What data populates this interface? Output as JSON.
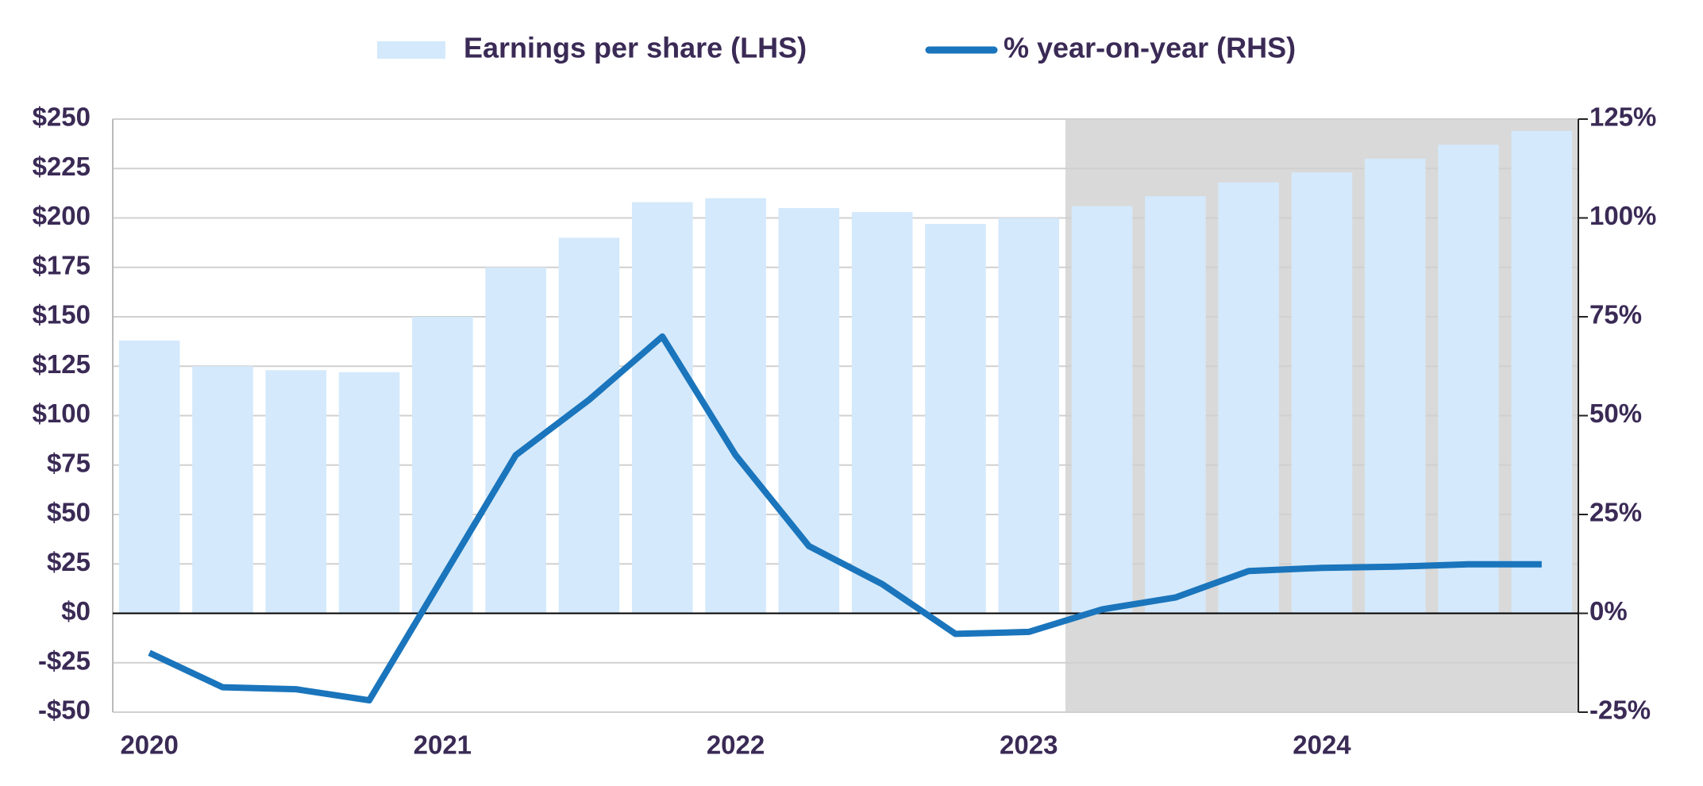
{
  "chart_data": {
    "type": "bar_line",
    "categories": [
      "2020",
      null,
      null,
      null,
      "2021",
      null,
      null,
      null,
      "2022",
      null,
      null,
      null,
      "2023",
      null,
      null,
      null,
      "2024",
      null,
      null,
      null
    ],
    "series": [
      {
        "name": "Earnings per share (LHS)",
        "type": "bar",
        "color": "#d4e9fb",
        "values": [
          138,
          125,
          123,
          122,
          150,
          175,
          190,
          208,
          210,
          205,
          203,
          197,
          200,
          206,
          211,
          218,
          223,
          230,
          237,
          244
        ]
      },
      {
        "name": "% year-on-year (RHS)",
        "type": "line",
        "axis": "y2",
        "color": "#1a75bc",
        "values": [
          -10,
          -18.7,
          -19.2,
          -22,
          9,
          40,
          54,
          70,
          40,
          17,
          7.4,
          -5.2,
          -4.7,
          1,
          4,
          10.7,
          11.5,
          11.8,
          12.4,
          12.4
        ]
      }
    ],
    "ylim": [
      -50,
      250
    ],
    "yticks": [
      {
        "value": -50,
        "label": "-$50"
      },
      {
        "value": -25,
        "label": "-$25"
      },
      {
        "value": 0,
        "label": "$0"
      },
      {
        "value": 25,
        "label": "$25"
      },
      {
        "value": 50,
        "label": "$50"
      },
      {
        "value": 75,
        "label": "$75"
      },
      {
        "value": 100,
        "label": "$100"
      },
      {
        "value": 125,
        "label": "$125"
      },
      {
        "value": 150,
        "label": "$150"
      },
      {
        "value": 175,
        "label": "$175"
      },
      {
        "value": 200,
        "label": "$200"
      },
      {
        "value": 225,
        "label": "$225"
      },
      {
        "value": 250,
        "label": "$250"
      }
    ],
    "y2lim": [
      -25,
      125
    ],
    "y2ticks": [
      {
        "value": -25,
        "label": "-25%"
      },
      {
        "value": 0,
        "label": "0%"
      },
      {
        "value": 25,
        "label": "25%"
      },
      {
        "value": 50,
        "label": "50%"
      },
      {
        "value": 75,
        "label": "75%"
      },
      {
        "value": 100,
        "label": "100%"
      },
      {
        "value": 125,
        "label": "125%"
      }
    ],
    "grid": true,
    "legend": "top",
    "shade": {
      "start_index": 13,
      "color": "#d9d9d9"
    }
  }
}
